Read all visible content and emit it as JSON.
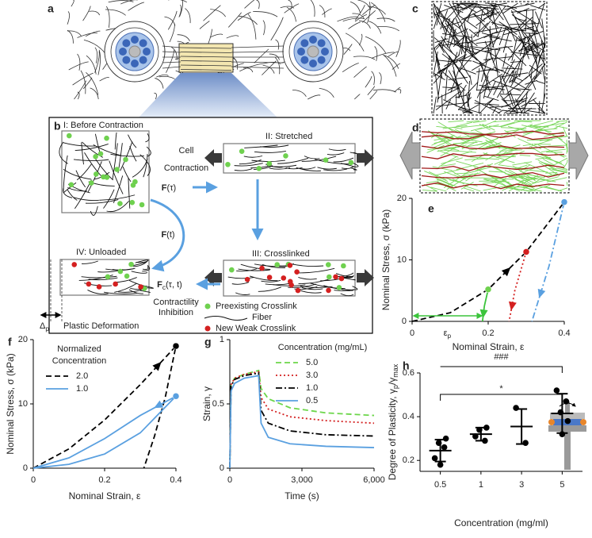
{
  "figure": {
    "panel_labels": [
      "a",
      "b",
      "c",
      "d"
    ]
  },
  "scheme": {
    "stage_1": "I: Before Contraction",
    "stage_2": "II: Stretched",
    "stage_3": "III: Crosslinked",
    "stage_4": "IV: Unloaded",
    "cell_contraction": [
      "Cell",
      "Contraction"
    ],
    "force_contraction": [
      {
        "b": "F"
      },
      {
        "t": "(τ)"
      }
    ],
    "force_unloaded": [
      {
        "b": "F"
      },
      {
        "t": "(t)"
      }
    ],
    "force_inhibition": [
      {
        "b": "F"
      },
      {
        "s": "c"
      },
      {
        "t": "(τ, t)"
      }
    ],
    "contractility_inhibition": [
      "Contractility",
      "Inhibition"
    ],
    "legend": [
      "Preexisting Crosslink",
      "Fiber",
      "New Weak Crosslink"
    ],
    "plastic_shift": [
      {
        "t": "Δ"
      },
      {
        "s": "p"
      }
    ],
    "plastic_deformation": "Plastic Deformation"
  },
  "chart_data": [
    {
      "panel": "e",
      "type": "line",
      "xlabel": "Nominal Strain, ε",
      "ylabel": "Nominal Stress, σ (kPa)",
      "xlim": [
        0,
        0.4
      ],
      "xticks": [
        0,
        0.2,
        0.4
      ],
      "ylim": [
        0,
        20
      ],
      "yticks": [
        0,
        10,
        20
      ],
      "series": [
        {
          "color": "#000000",
          "style": "dashed",
          "x": [
            0,
            0.1,
            0.2,
            0.3,
            0.4
          ],
          "y": [
            0,
            1.4,
            5.2,
            11.3,
            19.4
          ]
        },
        {
          "color": "#3cc43c",
          "style": "solid",
          "x": [
            0.2,
            0.19,
            0.185
          ],
          "y": [
            5.2,
            2.5,
            0
          ]
        },
        {
          "color": "#d42020",
          "style": "dotted",
          "x": [
            0.3,
            0.27,
            0.255
          ],
          "y": [
            11.3,
            5,
            0
          ]
        },
        {
          "color": "#5aa0e0",
          "style": "dashdot",
          "x": [
            0.4,
            0.36,
            0.315
          ],
          "y": [
            19.4,
            9,
            0
          ]
        }
      ],
      "markers": {
        "x": [
          0.2,
          0.3,
          0.4
        ],
        "y": [
          5.2,
          11.3,
          19.4
        ],
        "colors": [
          "#6fd14f",
          "#d42020",
          "#5aa0e0"
        ]
      },
      "annotation": [
        {
          "t": "ε"
        },
        {
          "s": "p"
        }
      ]
    },
    {
      "panel": "f",
      "type": "line",
      "xlabel": "Nominal Strain, ε",
      "ylabel": "Nominal Stress, σ (kPa)",
      "xlim": [
        0,
        0.4
      ],
      "xticks": [
        0,
        0.2,
        0.4
      ],
      "ylim": [
        0,
        20
      ],
      "yticks": [
        0,
        10,
        20
      ],
      "legend_title": [
        "Normalized",
        "Concentration"
      ],
      "series": [
        {
          "name": "2.0",
          "color": "#000000",
          "style": "dashed",
          "x": [
            0,
            0.1,
            0.2,
            0.3,
            0.4,
            0.37,
            0.34,
            0.31
          ],
          "y": [
            0,
            3,
            7.5,
            13,
            19,
            11,
            5,
            0
          ]
        },
        {
          "name": "1.0",
          "color": "#5aa0e0",
          "style": "solid",
          "x": [
            0,
            0.1,
            0.2,
            0.3,
            0.4,
            0.3,
            0.2,
            0.1,
            0
          ],
          "y": [
            0,
            0.6,
            2.2,
            5.5,
            11.2,
            8.2,
            4.6,
            1.6,
            0
          ]
        }
      ],
      "markers": {
        "x": [
          0.4,
          0.4
        ],
        "y": [
          19,
          11.2
        ],
        "colors": [
          "#000000",
          "#5aa0e0"
        ]
      }
    },
    {
      "panel": "g",
      "type": "line",
      "xlabel": "Time (s)",
      "ylabel": "Strain, γ",
      "xlim": [
        0,
        6000
      ],
      "xticks": [
        0,
        {
          "value": 3000,
          "label": "3,000"
        },
        {
          "value": 6000,
          "label": "6,000"
        }
      ],
      "ylim": [
        0,
        1
      ],
      "yticks": [
        0,
        0.5,
        1
      ],
      "legend_title": [
        "Concentration (mg/mL)"
      ],
      "x": [
        0,
        50,
        200,
        600,
        1200,
        1300,
        1600,
        2500,
        4000,
        6000
      ],
      "series": [
        {
          "name": "5.0",
          "color": "#6cd64a",
          "style": "dashed",
          "values": [
            0,
            0.65,
            0.7,
            0.73,
            0.76,
            0.62,
            0.54,
            0.47,
            0.43,
            0.41
          ]
        },
        {
          "name": "3.0",
          "color": "#d42020",
          "style": "dotted",
          "values": [
            0,
            0.65,
            0.7,
            0.73,
            0.75,
            0.55,
            0.46,
            0.4,
            0.37,
            0.35
          ]
        },
        {
          "name": "1.0",
          "color": "#000000",
          "style": "dashdot",
          "values": [
            0,
            0.64,
            0.69,
            0.72,
            0.74,
            0.45,
            0.35,
            0.29,
            0.26,
            0.25
          ]
        },
        {
          "name": "0.5",
          "color": "#5aa0e0",
          "style": "solid",
          "values": [
            0,
            0.6,
            0.66,
            0.7,
            0.72,
            0.35,
            0.24,
            0.19,
            0.17,
            0.16
          ]
        }
      ]
    },
    {
      "panel": "h",
      "type": "strip",
      "xlabel": "Concentration (mg/ml)",
      "ylabel": [
        {
          "t": "Degree of Plasticity, γ"
        },
        {
          "s": "p"
        },
        {
          "t": "/γ"
        },
        {
          "s": "max"
        }
      ],
      "categories": [
        "0.5",
        "1",
        "3",
        "5"
      ],
      "ylim": [
        0.15,
        0.6
      ],
      "yticks": [
        0.2,
        0.4,
        0.6
      ],
      "color": "#000000",
      "points": [
        [
          0.21,
          0.26,
          0.28,
          0.3,
          0.18
        ],
        [
          0.31,
          0.29,
          0.34,
          0.35
        ],
        [
          0.44,
          0.28
        ],
        [
          0.52,
          0.47,
          0.42,
          0.38,
          0.32
        ]
      ],
      "means": [
        0.245,
        0.32,
        0.355,
        0.415
      ],
      "sd": [
        0.05,
        0.03,
        0.08,
        0.09
      ],
      "annotations": [
        "###",
        "*"
      ]
    }
  ]
}
